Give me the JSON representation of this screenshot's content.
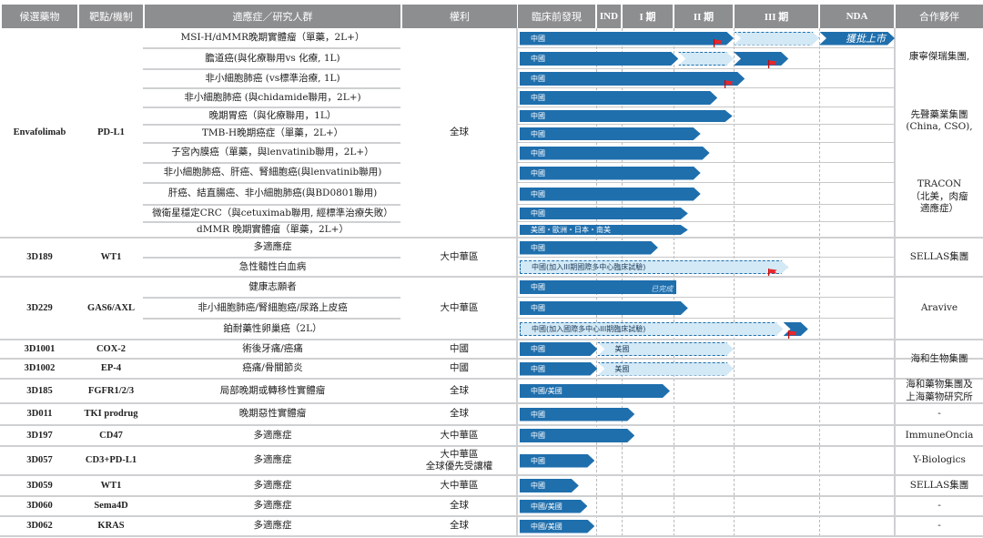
{
  "headers": {
    "drug": "候選藥物",
    "target": "靶點/機制",
    "indication": "適應症／研究人群",
    "rights": "權利",
    "phases": [
      "臨床前發現",
      "IND",
      "I 期",
      "II 期",
      "III 期",
      "NDA"
    ],
    "partner": "合作夥伴"
  },
  "groups": [
    {
      "drug": "Envafolimab",
      "target": "PD-L1",
      "rights": "全球",
      "rows": [
        {
          "indication": "MSI-H/dMMR晚期實體瘤（單藥，2L+）",
          "bars": [
            {
              "from": 0,
              "to": 4.0,
              "style": "solid",
              "label": "中國",
              "flag": true
            },
            {
              "from": 4.0,
              "to": 5.0,
              "style": "dashed"
            },
            {
              "from": 5.0,
              "to": 6.0,
              "style": "solid",
              "end_label": "獲批上市"
            }
          ]
        },
        {
          "indication": "膽道癌(與化療聯用vs 化療, 1L)",
          "bars": [
            {
              "from": 0,
              "to": 3.08,
              "style": "solid",
              "label": "中國"
            },
            {
              "from": 3.08,
              "to": 4.0,
              "style": "dashed"
            },
            {
              "from": 4.0,
              "to": 4.64,
              "style": "solid",
              "flag": true
            }
          ]
        },
        {
          "indication": "非小細胞肺癌 (vs標準治療, 1L)",
          "bars": [
            {
              "from": 0,
              "to": 4.13,
              "style": "solid",
              "label": "中國",
              "flag": true
            }
          ]
        },
        {
          "indication": "非小細胞肺癌 (與chidamide聯用，2L+)",
          "bars": [
            {
              "from": 0,
              "to": 3.73,
              "style": "solid",
              "label": "中國"
            }
          ]
        },
        {
          "indication": "晚期胃癌（與化療聯用，1L）",
          "bars": [
            {
              "from": 0,
              "to": 3.98,
              "style": "solid",
              "label": "中國"
            }
          ]
        },
        {
          "indication": "TMB-H晚期癌症（單藥，2L+）",
          "bars": [
            {
              "from": 0,
              "to": 3.45,
              "style": "solid",
              "label": "中國"
            }
          ]
        },
        {
          "indication": "子宮內膜癌（單藥，與lenvatinib聯用，2L+）",
          "bars": [
            {
              "from": 0,
              "to": 3.6,
              "style": "solid",
              "label": "中國"
            }
          ]
        },
        {
          "indication": "非小細胞肺癌、肝癌、腎細胞癌(與lenvatinib聯用)",
          "bars": [
            {
              "from": 0,
              "to": 3.45,
              "style": "solid",
              "label": "中國"
            }
          ]
        },
        {
          "indication": "肝癌、結直腸癌、非小細胞肺癌(與BD0801聯用)",
          "bars": [
            {
              "from": 0,
              "to": 3.45,
              "style": "solid",
              "label": "中國"
            }
          ]
        },
        {
          "indication": "微衛星穩定CRC（與cetuximab聯用, 經標準治療失敗）",
          "bars": [
            {
              "from": 0,
              "to": 3.24,
              "style": "solid",
              "label": "中國"
            }
          ]
        },
        {
          "indication": "dMMR 晚期實體瘤（單藥，2L+）",
          "bars": [
            {
              "from": 0,
              "to": 3.24,
              "style": "solid",
              "label": "美國・歐洲・日本・南美"
            }
          ]
        }
      ]
    },
    {
      "drug": "3D189",
      "target": "WT1",
      "rights": "大中華區",
      "rows": [
        {
          "indication": "多適應症",
          "bars": [
            {
              "from": 0,
              "to": 2.7,
              "style": "solid",
              "label": "中國"
            }
          ]
        },
        {
          "indication": "急性髓性白血病",
          "bars": [
            {
              "from": 0,
              "to": 4.64,
              "style": "dashed",
              "label": "中國(加入III期國際多中心臨床試驗)",
              "flag": true
            }
          ]
        }
      ]
    },
    {
      "drug": "3D229",
      "target": "GAS6/AXL",
      "rights": "大中華區",
      "rows": [
        {
          "indication": "健康志願者",
          "bars": [
            {
              "from": 0,
              "to": 3.05,
              "style": "solid",
              "label": "中國",
              "status": "已完成"
            }
          ]
        },
        {
          "indication": "非小細胞肺癌/腎細胞癌/尿路上皮癌",
          "bars": [
            {
              "from": 0,
              "to": 3.24,
              "style": "solid",
              "label": "中國"
            }
          ]
        },
        {
          "indication": "鉑耐藥性卵巢癌（2L）",
          "bars": [
            {
              "from": 0,
              "to": 4.58,
              "style": "dashed",
              "label": "中國(加入國際多中心III期臨床試驗)"
            },
            {
              "from": 4.58,
              "to": 4.87,
              "style": "solid",
              "flag": true
            }
          ]
        }
      ]
    },
    {
      "drug": "3D1001",
      "target": "COX-2",
      "rights": "中國",
      "rows": [
        {
          "indication": "術後牙痛/癌痛",
          "bars": [
            {
              "from": 0,
              "to": 1.05,
              "style": "solid",
              "label": "中國"
            },
            {
              "from": 1.05,
              "to": 4.0,
              "style": "dashed",
              "label": "美國"
            }
          ]
        }
      ]
    },
    {
      "drug": "3D1002",
      "target": "EP-4",
      "rights": "中國",
      "rows": [
        {
          "indication": "癌痛/骨關節炎",
          "bars": [
            {
              "from": 0,
              "to": 1.05,
              "style": "solid",
              "label": "中國"
            },
            {
              "from": 1.05,
              "to": 4.0,
              "style": "dashed",
              "label": "美國"
            }
          ]
        }
      ]
    },
    {
      "drug": "3D185",
      "target": "FGFR1/2/3",
      "rights": "全球",
      "rows": [
        {
          "indication": "局部晚期或轉移性實體瘤",
          "bars": [
            {
              "from": 0,
              "to": 2.93,
              "style": "solid",
              "label": "中國/美國"
            }
          ]
        }
      ]
    },
    {
      "drug": "3D011",
      "target": "TKI prodrug",
      "rights": "全球",
      "rows": [
        {
          "indication": "晚期惡性實體瘤",
          "bars": [
            {
              "from": 0,
              "to": 2.25,
              "style": "solid",
              "label": "中國"
            }
          ]
        }
      ]
    },
    {
      "drug": "3D197",
      "target": "CD47",
      "rights": "大中華區",
      "rows": [
        {
          "indication": "多適應症",
          "bars": [
            {
              "from": 0,
              "to": 2.25,
              "style": "solid",
              "label": "中國"
            }
          ]
        }
      ]
    },
    {
      "drug": "3D057",
      "target": "CD3+PD-L1",
      "rights": "大中華區\n全球優先受讓權",
      "rows": [
        {
          "indication": "多適應症",
          "bars": [
            {
              "from": 0,
              "to": 0.98,
              "style": "solid",
              "label": "中國"
            }
          ]
        }
      ]
    },
    {
      "drug": "3D059",
      "target": "WT1",
      "rights": "大中華區",
      "rows": [
        {
          "indication": "多適應症",
          "bars": [
            {
              "from": 0,
              "to": 0.78,
              "style": "solid",
              "label": "中國"
            }
          ]
        }
      ]
    },
    {
      "drug": "3D060",
      "target": "Sema4D",
      "rights": "全球",
      "rows": [
        {
          "indication": "多適應症",
          "bars": [
            {
              "from": 0,
              "to": 0.89,
              "style": "solid",
              "label": "中國/美國"
            }
          ]
        }
      ]
    },
    {
      "drug": "3D062",
      "target": "KRAS",
      "rights": "全球",
      "rows": [
        {
          "indication": "多適應症",
          "bars": [
            {
              "from": 0,
              "to": 0.98,
              "style": "solid",
              "label": "中國/美國"
            }
          ]
        }
      ]
    }
  ],
  "partners": [
    {
      "row_from": 0,
      "row_to": 10,
      "texts": [
        "康寧傑瑞集團,",
        "先聲藥業集團\n(China, CSO),",
        "TRACON\n（北美，肉瘤\n適應症）"
      ]
    },
    {
      "row_from": 11,
      "row_to": 12,
      "texts": [
        "SELLAS集團"
      ]
    },
    {
      "row_from": 13,
      "row_to": 15,
      "texts": [
        "Aravive"
      ]
    },
    {
      "row_from": 16,
      "row_to": 17,
      "texts": [
        "海和生物集團"
      ]
    },
    {
      "row_from": 18,
      "row_to": 18,
      "texts": [
        "海和藥物集團及\n上海藥物研究所"
      ]
    },
    {
      "row_from": 19,
      "row_to": 19,
      "texts": [
        "-"
      ]
    },
    {
      "row_from": 20,
      "row_to": 20,
      "texts": [
        "ImmuneOncia"
      ]
    },
    {
      "row_from": 21,
      "row_to": 21,
      "texts": [
        "Y-Biologics"
      ]
    },
    {
      "row_from": 22,
      "row_to": 22,
      "texts": [
        "SELLAS集團"
      ]
    },
    {
      "row_from": 23,
      "row_to": 23,
      "texts": [
        "-"
      ]
    },
    {
      "row_from": 24,
      "row_to": 24,
      "texts": [
        "-"
      ]
    }
  ],
  "colors": {
    "bar": "#1f6fad",
    "dashed_fill": "#d3e9f5",
    "header": "#8d8e90",
    "flag": "#e8262b"
  }
}
